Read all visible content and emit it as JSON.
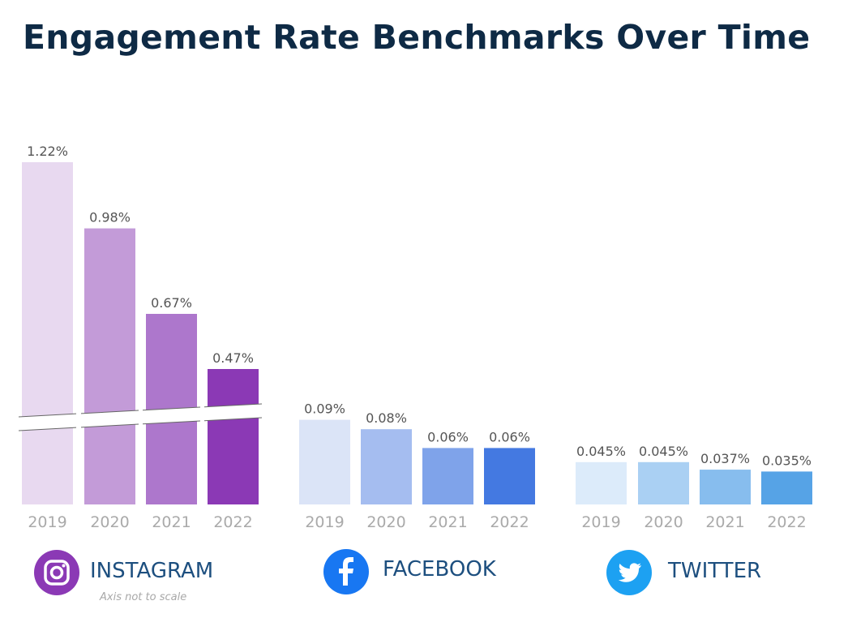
{
  "title": "Engagement Rate Benchmarks Over Time",
  "note": "Axis not to scale",
  "chart_data": {
    "type": "bar",
    "title": "Engagement Rate Benchmarks Over Time",
    "categories": [
      "2019",
      "2020",
      "2021",
      "2022"
    ],
    "axis_note": "Axis not to scale",
    "grid": false,
    "groups": [
      {
        "name": "INSTAGRAM",
        "icon": "instagram-icon",
        "icon_color": "#8b39b5",
        "values": [
          1.22,
          0.98,
          0.67,
          0.47
        ],
        "labels": [
          "1.22%",
          "0.98%",
          "0.67%",
          "0.47%"
        ],
        "colors": [
          "#e8d9f0",
          "#c39bd8",
          "#ad77cc",
          "#8b39b5"
        ],
        "axis_break": true
      },
      {
        "name": "FACEBOOK",
        "icon": "facebook-icon",
        "icon_color": "#1877f2",
        "values": [
          0.09,
          0.08,
          0.06,
          0.06
        ],
        "labels": [
          "0.09%",
          "0.08%",
          "0.06%",
          "0.06%"
        ],
        "colors": [
          "#dbe4f7",
          "#a5bdf0",
          "#7fa3ea",
          "#4479e1"
        ],
        "axis_break": false
      },
      {
        "name": "TWITTER",
        "icon": "twitter-icon",
        "icon_color": "#1da1f2",
        "values": [
          0.045,
          0.045,
          0.037,
          0.035
        ],
        "labels": [
          "0.045%",
          "0.045%",
          "0.037%",
          "0.035%"
        ],
        "colors": [
          "#dcebfa",
          "#aad0f3",
          "#87bdee",
          "#56a3e6"
        ],
        "axis_break": false
      }
    ]
  }
}
